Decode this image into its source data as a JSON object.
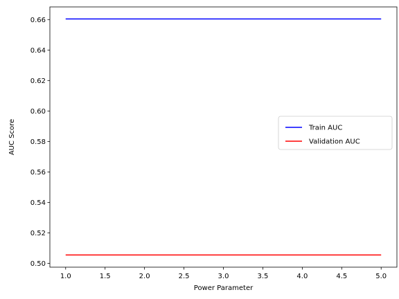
{
  "chart_data": {
    "type": "line",
    "title": "",
    "xlabel": "Power Parameter",
    "ylabel": "AUC Score",
    "xlim": [
      0.8,
      5.2
    ],
    "ylim": [
      0.4975,
      0.6683
    ],
    "xticks": [
      1.0,
      1.5,
      2.0,
      2.5,
      3.0,
      3.5,
      4.0,
      4.5,
      5.0
    ],
    "xtick_labels": [
      "1.0",
      "1.5",
      "2.0",
      "2.5",
      "3.0",
      "3.5",
      "4.0",
      "4.5",
      "5.0"
    ],
    "yticks": [
      0.5,
      0.52,
      0.54,
      0.56,
      0.58,
      0.6,
      0.62,
      0.64,
      0.66
    ],
    "ytick_labels": [
      "0.50",
      "0.52",
      "0.54",
      "0.56",
      "0.58",
      "0.60",
      "0.62",
      "0.64",
      "0.66"
    ],
    "x": [
      1,
      2,
      3,
      4,
      5
    ],
    "series": [
      {
        "name": "Train AUC",
        "color": "#0000ff",
        "values": [
          0.6604,
          0.6604,
          0.6604,
          0.6604,
          0.6604
        ]
      },
      {
        "name": "Validation AUC",
        "color": "#ff0000",
        "values": [
          0.5055,
          0.5055,
          0.5055,
          0.5055,
          0.5055
        ]
      }
    ],
    "grid": false,
    "legend_position": "center-right"
  }
}
